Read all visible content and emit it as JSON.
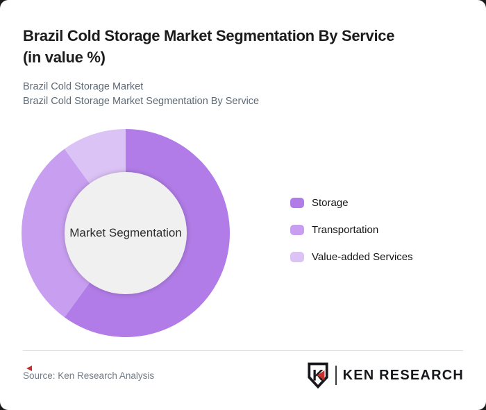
{
  "frame": {
    "background": "#1a1a1c",
    "card_background": "#ffffff"
  },
  "header": {
    "title_lines": [
      "Brazil Cold Storage Market Segmentation By Service",
      "(in value %)"
    ],
    "subtitle_lines": [
      "Brazil Cold Storage Market",
      "Brazil Cold Storage Market Segmentation By Service"
    ]
  },
  "chart_data": {
    "type": "pie",
    "variant": "donut",
    "title": "Brazil Cold Storage Market Segmentation By Service (in value %)",
    "center_label": "Market Segmentation",
    "units": "value %",
    "start_angle_deg": 0,
    "direction": "clockwise",
    "inner_radius_ratio": 0.587,
    "center_fill": "#f0f0f0",
    "legend_position": "right",
    "segments": [
      {
        "label": "Storage",
        "value": 60,
        "color": "#b17ce7"
      },
      {
        "label": "Transportation",
        "value": 30,
        "color": "#c89ff0"
      },
      {
        "label": "Value-added Services",
        "value": 10,
        "color": "#dcc3f5"
      }
    ]
  },
  "footer": {
    "source": "Source: Ken Research Analysis",
    "logo_monogram": "K",
    "logo_text": "KEN RESEARCH",
    "logo_red": "#c62f2b"
  }
}
